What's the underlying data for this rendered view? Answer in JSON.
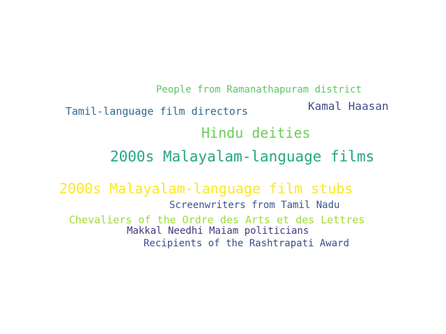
{
  "words": [
    {
      "text": "People from Ramanathapuram district",
      "color": "#5cc863"
    },
    {
      "text": "Kamal Haasan",
      "color": "#3f4a8a"
    },
    {
      "text": "Tamil-language film directors",
      "color": "#31688e"
    },
    {
      "text": "Hindu deities",
      "color": "#6ccd5a"
    },
    {
      "text": "2000s Malayalam-language films",
      "color": "#25a584"
    },
    {
      "text": "2000s Malayalam-language film stubs",
      "color": "#fde725"
    },
    {
      "text": "Screenwriters from Tamil Nadu",
      "color": "#3b528b"
    },
    {
      "text": "Chevaliers of the Ordre des Arts et des Lettres",
      "color": "#a0da39"
    },
    {
      "text": "Makkal Needhi Maiam politicians",
      "color": "#46337e"
    },
    {
      "text": "Recipients of the Rashtrapati Award",
      "color": "#3e4c8a"
    }
  ]
}
